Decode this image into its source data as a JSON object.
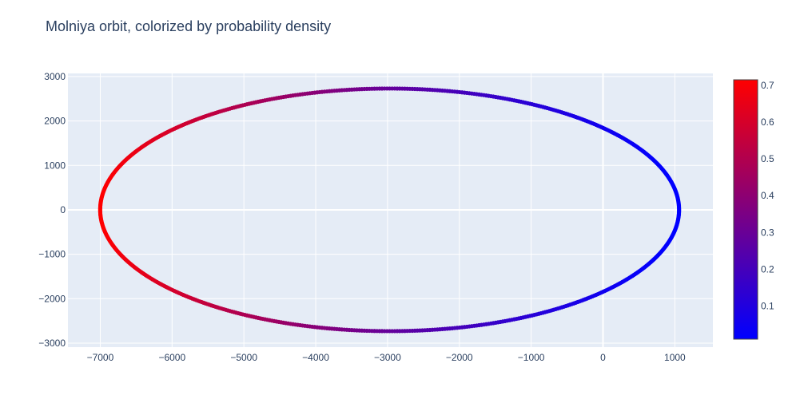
{
  "chart_data": {
    "type": "scatter",
    "title": "Molniya orbit, colorized by probability density",
    "xlabel": "",
    "ylabel": "",
    "orbit": {
      "center_x": -2971,
      "center_y": 0,
      "semi_major": 4030,
      "semi_minor": 2730,
      "points": 720
    },
    "xlim": [
      -7450,
      1530
    ],
    "ylim": [
      -3090,
      3070
    ],
    "x_ticks": [
      -7000,
      -6000,
      -5000,
      -4000,
      -3000,
      -2000,
      -1000,
      0,
      1000
    ],
    "y_ticks": [
      3000,
      2000,
      1000,
      0,
      -1000,
      -2000,
      -3000
    ],
    "x_tick_labels": [
      "−7000",
      "−6000",
      "−5000",
      "−4000",
      "−3000",
      "−2000",
      "−1000",
      "0",
      "1000"
    ],
    "y_tick_labels": [
      "3000",
      "2000",
      "1000",
      "0",
      "−1000",
      "−2000",
      "−3000"
    ],
    "colorscale": {
      "min": 0.01,
      "max": 0.715,
      "colors": [
        "#0000ff",
        "#ff0000"
      ],
      "ticks": [
        0.1,
        0.2,
        0.3,
        0.4,
        0.5,
        0.6,
        0.7
      ],
      "tick_labels": [
        "0.1",
        "0.2",
        "0.3",
        "0.4",
        "0.5",
        "0.6",
        "0.7"
      ]
    },
    "grid": true,
    "plot_bg": "#e5ecf6",
    "grid_color": "#ffffff",
    "text_color": "#2a3f5f"
  }
}
